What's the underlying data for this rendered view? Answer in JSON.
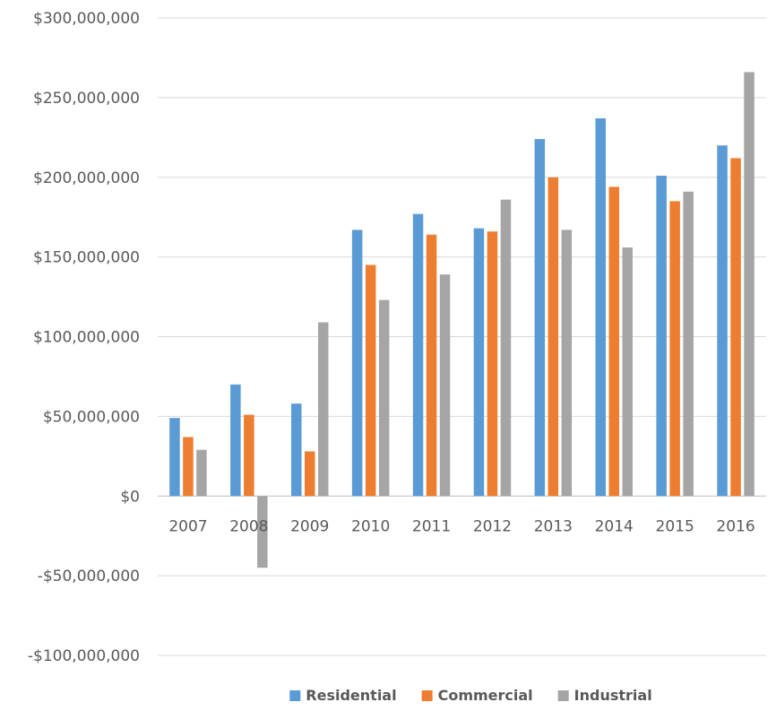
{
  "chart_data": {
    "type": "bar",
    "categories": [
      "2007",
      "2008",
      "2009",
      "2010",
      "2011",
      "2012",
      "2013",
      "2014",
      "2015",
      "2016"
    ],
    "series": [
      {
        "name": "Residential",
        "color": "#5B9BD5",
        "values": [
          49000000,
          70000000,
          58000000,
          167000000,
          177000000,
          168000000,
          224000000,
          237000000,
          201000000,
          220000000
        ]
      },
      {
        "name": "Commercial",
        "color": "#ED7D31",
        "values": [
          37000000,
          51000000,
          28000000,
          145000000,
          164000000,
          166000000,
          200000000,
          194000000,
          185000000,
          212000000
        ]
      },
      {
        "name": "Industrial",
        "color": "#A5A5A5",
        "values": [
          29000000,
          -45000000,
          109000000,
          123000000,
          139000000,
          186000000,
          167000000,
          156000000,
          191000000,
          266000000
        ]
      }
    ],
    "ylim": [
      -100000000,
      300000000
    ],
    "yticks": [
      300000000,
      250000000,
      200000000,
      150000000,
      100000000,
      50000000,
      0,
      -50000000,
      -100000000
    ],
    "ytick_labels": [
      "$300,000,000",
      "$250,000,000",
      "$200,000,000",
      "$150,000,000",
      "$100,000,000",
      "$50,000,000",
      "$0",
      "-$50,000,000",
      "-$100,000,000"
    ],
    "grid": "horizontal",
    "gridline_color": "#D9D9D9",
    "legend_placement": "bottom-center",
    "title": "",
    "xlabel": "",
    "ylabel": ""
  }
}
